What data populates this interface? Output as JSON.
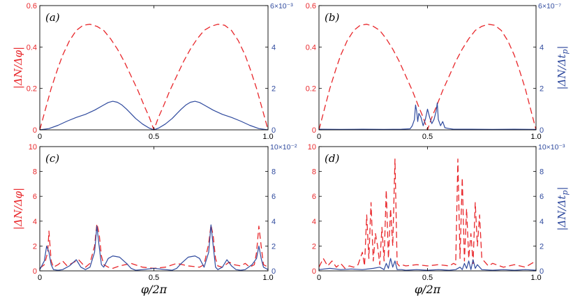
{
  "colors": {
    "left_series": "#e8262a",
    "right_series": "#2f4a9e",
    "axis": "#000000"
  },
  "chart_data": [
    {
      "type": "line",
      "panel_label": "(a)",
      "xlabel": "",
      "ylabel_left": "|ΔN/Δφ|",
      "ylabel_right": "",
      "xlim": [
        0,
        1
      ],
      "ylim_left": [
        0,
        0.6
      ],
      "ylim_right": [
        0,
        6
      ],
      "right_multiplier": "6×10⁻³",
      "xticks": [
        "0",
        "0.5",
        "1.0"
      ],
      "yticks_left": [
        "0",
        "0.2",
        "0.4",
        "0.6"
      ],
      "yticks_right": [
        "0",
        "2",
        "4",
        ""
      ],
      "series": [
        {
          "axis": "left",
          "style": "dashed",
          "x": [
            0,
            0.02,
            0.05,
            0.08,
            0.1,
            0.13,
            0.16,
            0.19,
            0.22,
            0.25,
            0.28,
            0.31,
            0.34,
            0.37,
            0.4,
            0.43,
            0.46,
            0.48,
            0.5,
            0.52,
            0.54,
            0.57,
            0.6,
            0.63,
            0.66,
            0.69,
            0.72,
            0.75,
            0.78,
            0.81,
            0.84,
            0.87,
            0.9,
            0.92,
            0.95,
            0.98,
            1.0
          ],
          "y": [
            0,
            0.08,
            0.2,
            0.3,
            0.36,
            0.43,
            0.48,
            0.505,
            0.51,
            0.5,
            0.48,
            0.44,
            0.39,
            0.33,
            0.26,
            0.19,
            0.11,
            0.06,
            0.0,
            0.06,
            0.11,
            0.19,
            0.26,
            0.33,
            0.39,
            0.44,
            0.48,
            0.5,
            0.51,
            0.505,
            0.48,
            0.43,
            0.36,
            0.3,
            0.2,
            0.08,
            0.0
          ]
        },
        {
          "axis": "right",
          "style": "solid",
          "x": [
            0,
            0.04,
            0.08,
            0.12,
            0.16,
            0.2,
            0.24,
            0.28,
            0.3,
            0.32,
            0.34,
            0.36,
            0.38,
            0.4,
            0.42,
            0.45,
            0.48,
            0.5,
            0.52,
            0.55,
            0.58,
            0.6,
            0.62,
            0.64,
            0.66,
            0.68,
            0.7,
            0.72,
            0.76,
            0.8,
            0.84,
            0.88,
            0.92,
            0.96,
            1.0
          ],
          "y": [
            0,
            0.06,
            0.22,
            0.42,
            0.6,
            0.75,
            0.95,
            1.2,
            1.32,
            1.38,
            1.33,
            1.2,
            1.0,
            0.78,
            0.55,
            0.28,
            0.08,
            0.0,
            0.08,
            0.28,
            0.55,
            0.78,
            1.0,
            1.2,
            1.33,
            1.38,
            1.32,
            1.2,
            0.95,
            0.75,
            0.6,
            0.42,
            0.22,
            0.06,
            0.0
          ]
        }
      ]
    },
    {
      "type": "line",
      "panel_label": "(b)",
      "xlabel": "",
      "ylabel_left": "",
      "ylabel_right": "|ΔN/Δtp|",
      "xlim": [
        0,
        1
      ],
      "ylim_left": [
        0,
        0.6
      ],
      "ylim_right": [
        0,
        6
      ],
      "right_multiplier": "6×10⁻⁷",
      "xticks": [
        "0",
        "0.5",
        "1.0"
      ],
      "yticks_left": [
        "0",
        "0.2",
        "0.4",
        "0.6"
      ],
      "yticks_right": [
        "0",
        "2",
        "4",
        ""
      ],
      "series": [
        {
          "axis": "left",
          "style": "dashed",
          "x": [
            0,
            0.02,
            0.05,
            0.08,
            0.1,
            0.13,
            0.16,
            0.19,
            0.22,
            0.25,
            0.28,
            0.31,
            0.34,
            0.37,
            0.4,
            0.43,
            0.46,
            0.48,
            0.5,
            0.52,
            0.54,
            0.57,
            0.6,
            0.63,
            0.66,
            0.69,
            0.72,
            0.75,
            0.78,
            0.81,
            0.84,
            0.87,
            0.9,
            0.92,
            0.95,
            0.98,
            1.0
          ],
          "y": [
            0,
            0.08,
            0.2,
            0.3,
            0.36,
            0.43,
            0.48,
            0.505,
            0.51,
            0.5,
            0.48,
            0.44,
            0.39,
            0.33,
            0.26,
            0.19,
            0.11,
            0.06,
            0.0,
            0.06,
            0.11,
            0.19,
            0.26,
            0.33,
            0.39,
            0.44,
            0.48,
            0.5,
            0.51,
            0.505,
            0.48,
            0.43,
            0.36,
            0.3,
            0.2,
            0.08,
            0.0
          ]
        },
        {
          "axis": "right",
          "style": "solid",
          "x": [
            0,
            0.1,
            0.2,
            0.3,
            0.38,
            0.42,
            0.43,
            0.44,
            0.445,
            0.45,
            0.455,
            0.46,
            0.47,
            0.48,
            0.49,
            0.5,
            0.51,
            0.52,
            0.53,
            0.54,
            0.545,
            0.55,
            0.56,
            0.57,
            0.58,
            0.6,
            0.62,
            0.7,
            0.8,
            0.9,
            1.0
          ],
          "y": [
            0.03,
            0.02,
            0.03,
            0.02,
            0.03,
            0.05,
            0.2,
            0.5,
            1.2,
            0.9,
            0.4,
            0.8,
            0.6,
            0.2,
            0.5,
            1.0,
            0.6,
            0.3,
            0.5,
            0.9,
            1.3,
            0.5,
            0.2,
            0.4,
            0.1,
            0.06,
            0.03,
            0.03,
            0.02,
            0.03,
            0.02
          ]
        }
      ]
    },
    {
      "type": "line",
      "panel_label": "(c)",
      "xlabel": "φ/2π",
      "ylabel_left": "|ΔN/Δφ|",
      "ylabel_right": "",
      "xlim": [
        0,
        1
      ],
      "ylim_left": [
        0,
        10
      ],
      "ylim_right": [
        0,
        10
      ],
      "right_multiplier": "10×10⁻²",
      "xticks": [
        "0",
        "0.5",
        "1.0"
      ],
      "yticks_left": [
        "0",
        "2",
        "4",
        "6",
        "8",
        "10"
      ],
      "yticks_right": [
        "0",
        "2",
        "4",
        "6",
        "8",
        ""
      ],
      "series": [
        {
          "axis": "left",
          "style": "dashed",
          "x": [
            0,
            0.02,
            0.035,
            0.04,
            0.045,
            0.05,
            0.06,
            0.08,
            0.1,
            0.12,
            0.15,
            0.17,
            0.2,
            0.22,
            0.24,
            0.25,
            0.26,
            0.27,
            0.28,
            0.3,
            0.32,
            0.35,
            0.4,
            0.45,
            0.5,
            0.55,
            0.6,
            0.65,
            0.7,
            0.72,
            0.74,
            0.75,
            0.76,
            0.77,
            0.78,
            0.8,
            0.83,
            0.85,
            0.88,
            0.9,
            0.92,
            0.94,
            0.95,
            0.96,
            0.97,
            0.98,
            1.0
          ],
          "y": [
            0.2,
            0.5,
            1.5,
            3.2,
            2.0,
            0.8,
            0.3,
            0.5,
            0.8,
            0.4,
            0.7,
            0.9,
            0.3,
            0.6,
            2.0,
            3.8,
            3.0,
            1.2,
            0.5,
            0.3,
            0.2,
            0.4,
            0.6,
            0.3,
            0.2,
            0.3,
            0.6,
            0.4,
            0.3,
            0.5,
            2.2,
            3.7,
            2.8,
            1.0,
            0.4,
            0.3,
            0.7,
            0.5,
            0.4,
            0.6,
            0.3,
            0.5,
            1.5,
            3.6,
            2.0,
            0.5,
            0.3
          ]
        },
        {
          "axis": "right",
          "style": "solid",
          "x": [
            0,
            0.02,
            0.03,
            0.04,
            0.05,
            0.06,
            0.08,
            0.1,
            0.13,
            0.16,
            0.18,
            0.2,
            0.22,
            0.24,
            0.25,
            0.26,
            0.27,
            0.28,
            0.3,
            0.32,
            0.35,
            0.38,
            0.4,
            0.42,
            0.45,
            0.5,
            0.55,
            0.58,
            0.6,
            0.62,
            0.65,
            0.68,
            0.7,
            0.72,
            0.74,
            0.75,
            0.76,
            0.77,
            0.78,
            0.8,
            0.82,
            0.84,
            0.86,
            0.88,
            0.9,
            0.93,
            0.95,
            0.96,
            0.97,
            0.98,
            1.0
          ],
          "y": [
            0.1,
            0.8,
            2.0,
            1.5,
            0.5,
            0.1,
            0.05,
            0.1,
            0.4,
            0.9,
            0.3,
            0.1,
            0.3,
            1.5,
            3.6,
            2.0,
            0.5,
            0.3,
            1.0,
            1.2,
            1.1,
            0.6,
            0.2,
            0.05,
            0.1,
            0.2,
            0.1,
            0.05,
            0.2,
            0.6,
            1.1,
            1.2,
            1.0,
            0.3,
            1.5,
            3.7,
            2.0,
            0.3,
            0.1,
            0.3,
            0.9,
            0.4,
            0.1,
            0.05,
            0.1,
            0.5,
            1.0,
            2.0,
            1.0,
            0.3,
            0.1
          ]
        }
      ]
    },
    {
      "type": "line",
      "panel_label": "(d)",
      "xlabel": "φ/2π",
      "ylabel_left": "",
      "ylabel_right": "|ΔN/Δtp|",
      "xlim": [
        0,
        1
      ],
      "ylim_left": [
        0,
        10
      ],
      "ylim_right": [
        0,
        10
      ],
      "right_multiplier": "10×10⁻³",
      "xticks": [
        "0",
        "0.5",
        "1.0"
      ],
      "yticks_left": [
        "0",
        "2",
        "4",
        "6",
        "8",
        "10"
      ],
      "yticks_right": [
        "0",
        "2",
        "4",
        "6",
        "8",
        ""
      ],
      "series": [
        {
          "axis": "left",
          "style": "dashed",
          "x": [
            0,
            0.02,
            0.04,
            0.06,
            0.08,
            0.1,
            0.12,
            0.14,
            0.16,
            0.18,
            0.2,
            0.21,
            0.22,
            0.23,
            0.24,
            0.25,
            0.26,
            0.27,
            0.28,
            0.29,
            0.3,
            0.31,
            0.32,
            0.33,
            0.34,
            0.35,
            0.36,
            0.37,
            0.38,
            0.4,
            0.45,
            0.5,
            0.55,
            0.6,
            0.62,
            0.63,
            0.64,
            0.65,
            0.66,
            0.67,
            0.68,
            0.69,
            0.7,
            0.71,
            0.72,
            0.73,
            0.74,
            0.75,
            0.76,
            0.78,
            0.8,
            0.85,
            0.9,
            0.95,
            1.0
          ],
          "y": [
            0.3,
            1.0,
            0.4,
            0.8,
            0.3,
            0.6,
            0.2,
            0.4,
            0.3,
            0.5,
            1.5,
            0.4,
            4.5,
            1.0,
            5.5,
            0.8,
            3.0,
            2.0,
            0.5,
            3.5,
            0.8,
            6.5,
            1.0,
            5.0,
            2.0,
            9.0,
            0.6,
            0.4,
            0.5,
            0.4,
            0.5,
            0.4,
            0.5,
            0.4,
            0.6,
            0.5,
            9.0,
            1.0,
            7.5,
            0.8,
            5.0,
            1.0,
            3.0,
            0.6,
            5.5,
            2.0,
            4.5,
            1.0,
            0.8,
            0.4,
            0.6,
            0.3,
            0.5,
            0.3,
            0.8
          ]
        },
        {
          "axis": "right",
          "style": "solid",
          "x": [
            0,
            0.05,
            0.1,
            0.15,
            0.2,
            0.25,
            0.28,
            0.3,
            0.31,
            0.32,
            0.33,
            0.34,
            0.35,
            0.36,
            0.38,
            0.4,
            0.45,
            0.5,
            0.55,
            0.6,
            0.63,
            0.65,
            0.66,
            0.67,
            0.68,
            0.69,
            0.7,
            0.71,
            0.72,
            0.73,
            0.75,
            0.8,
            0.85,
            0.9,
            0.95,
            1.0
          ],
          "y": [
            0.1,
            0.2,
            0.1,
            0.15,
            0.1,
            0.2,
            0.3,
            0.1,
            0.6,
            0.2,
            1.0,
            0.3,
            0.8,
            0.1,
            0.1,
            0.05,
            0.1,
            0.05,
            0.1,
            0.05,
            0.1,
            0.3,
            0.1,
            0.6,
            0.2,
            0.8,
            0.1,
            0.9,
            0.2,
            0.5,
            0.1,
            0.05,
            0.1,
            0.05,
            0.1,
            0.05
          ]
        }
      ]
    }
  ]
}
